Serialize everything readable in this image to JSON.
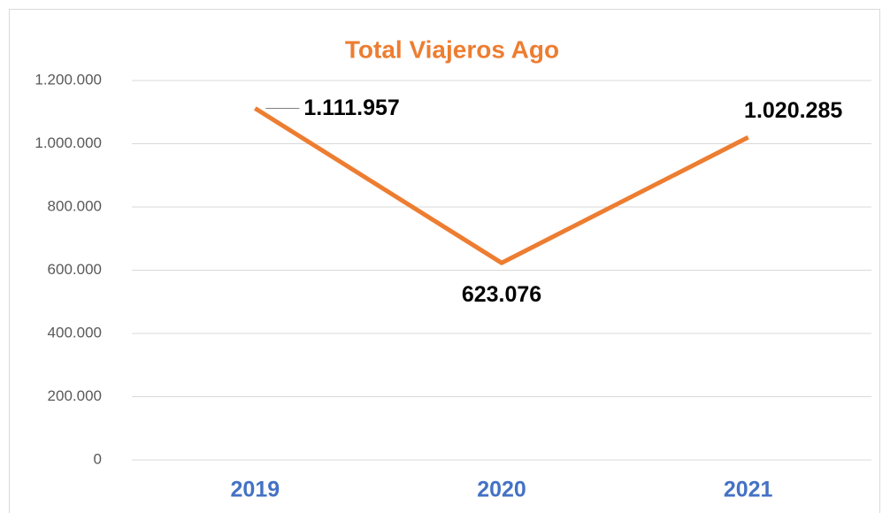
{
  "chart_data": {
    "type": "line",
    "title": "Total Viajeros Ago",
    "categories": [
      "2019",
      "2020",
      "2021"
    ],
    "series": [
      {
        "name": "Total Viajeros Ago",
        "color": "#ed7d31",
        "values": [
          1111957,
          623076,
          1020285
        ],
        "value_labels": [
          "1.111.957",
          "623.076",
          "1.020.285"
        ]
      }
    ],
    "ylim": [
      0,
      1200000
    ],
    "yticks": [
      0,
      {
        "value": 200000,
        "label": "200.000"
      },
      {
        "value": 400000,
        "label": "400.000"
      },
      {
        "value": 600000,
        "label": "600.000"
      },
      {
        "value": 800000,
        "label": "800.000"
      },
      {
        "value": 1000000,
        "label": "1.000.000"
      },
      {
        "value": 1200000,
        "label": "1.200.000"
      }
    ],
    "grid": true
  }
}
